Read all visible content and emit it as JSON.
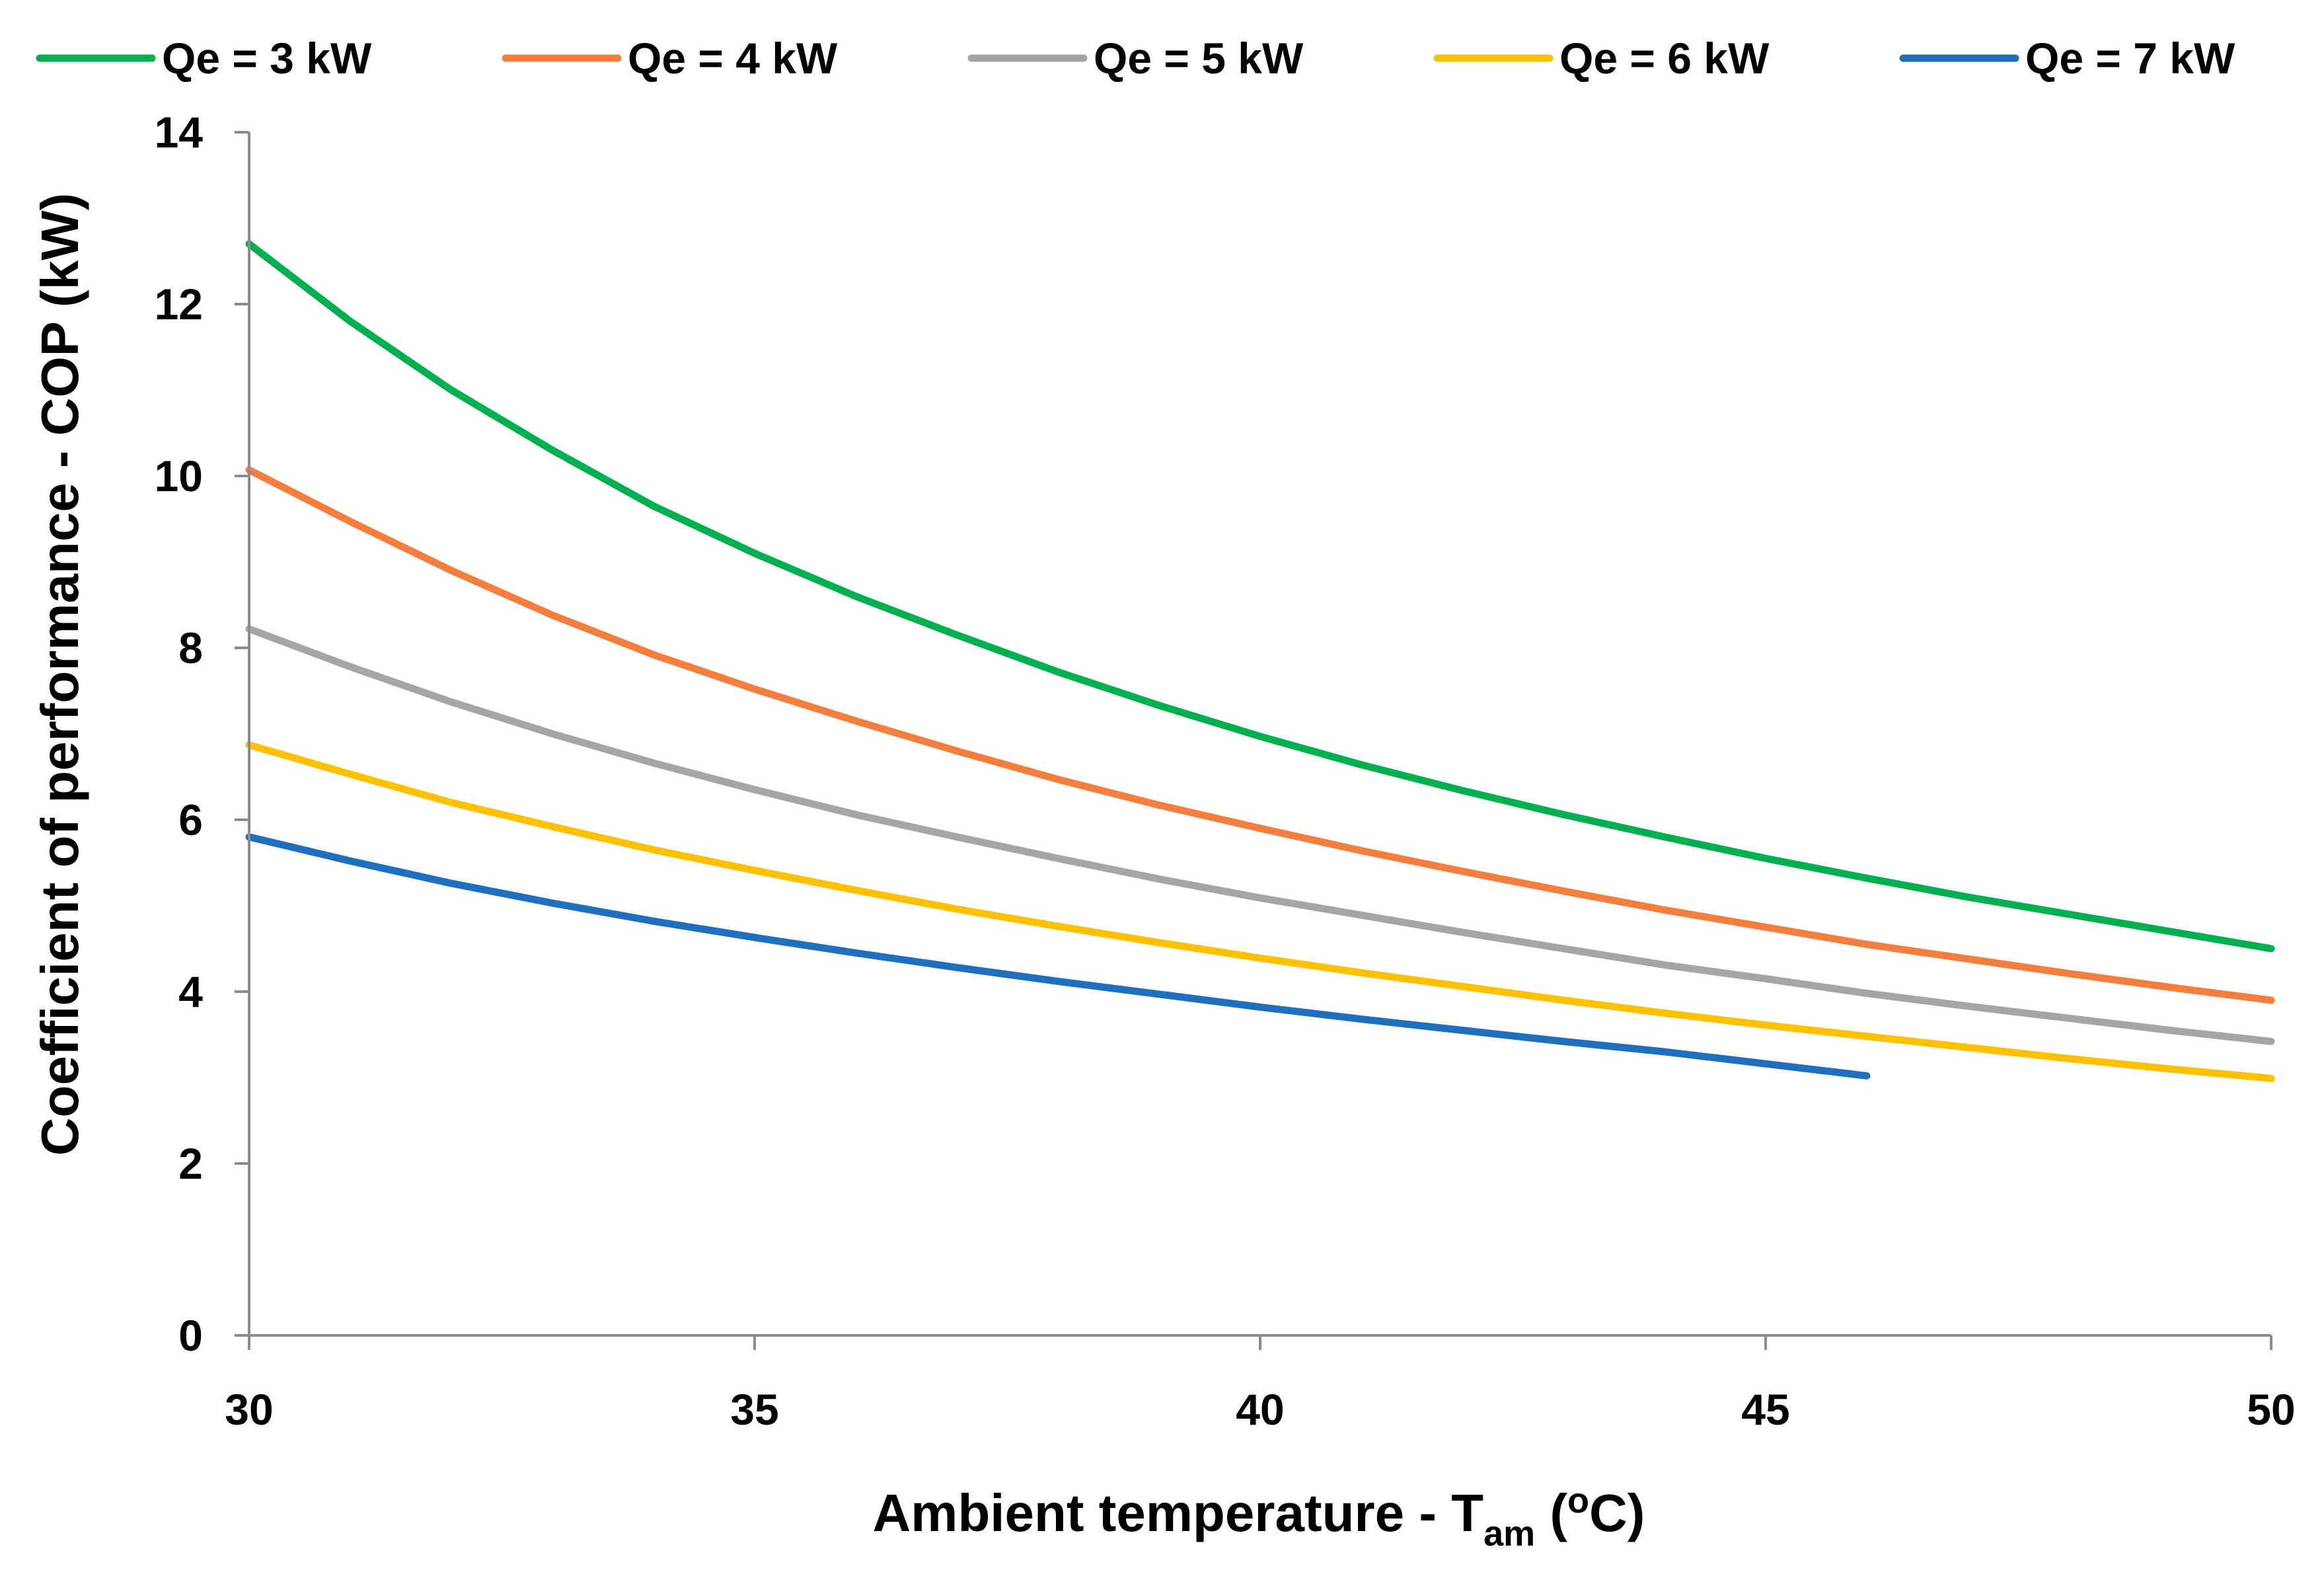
{
  "chart_data": {
    "type": "line",
    "xlabel": {
      "main": "Ambient temperature - T",
      "sub": "am",
      "tail": " (",
      "sup": "o",
      "end": "C)"
    },
    "ylabel": "Coefficient of performance - COP (kW)",
    "xlim": [
      30,
      50
    ],
    "ylim": [
      0,
      14
    ],
    "x_ticks": [
      "30",
      "35",
      "40",
      "45",
      "50"
    ],
    "y_ticks": [
      "0",
      "2",
      "4",
      "6",
      "8",
      "10",
      "12",
      "14"
    ],
    "grid": false,
    "legend_position": "top",
    "series": [
      {
        "name": "Qe = 3 kW",
        "color": "#00B050",
        "x": [
          30,
          31,
          32,
          33,
          34,
          35,
          36,
          37,
          38,
          39,
          40,
          41,
          42,
          43,
          44,
          45,
          46,
          47,
          48,
          49,
          50
        ],
        "y": [
          12.7,
          11.8,
          11.0,
          10.3,
          9.65,
          9.1,
          8.6,
          8.15,
          7.72,
          7.33,
          6.97,
          6.64,
          6.34,
          6.06,
          5.8,
          5.55,
          5.32,
          5.1,
          4.9,
          4.7,
          4.5
        ]
      },
      {
        "name": "Qe = 4 kW",
        "color": "#F47E3E",
        "x": [
          30,
          31,
          32,
          33,
          34,
          35,
          36,
          37,
          38,
          39,
          40,
          41,
          42,
          43,
          44,
          45,
          46,
          47,
          48,
          49,
          50
        ],
        "y": [
          10.07,
          9.47,
          8.9,
          8.38,
          7.92,
          7.52,
          7.15,
          6.8,
          6.47,
          6.17,
          5.9,
          5.64,
          5.4,
          5.17,
          4.95,
          4.75,
          4.55,
          4.38,
          4.21,
          4.05,
          3.9
        ]
      },
      {
        "name": "Qe = 5 kW",
        "color": "#A5A5A5",
        "x": [
          30,
          31,
          32,
          33,
          34,
          35,
          36,
          37,
          38,
          39,
          40,
          41,
          42,
          43,
          44,
          45,
          46,
          47,
          48,
          49,
          50
        ],
        "y": [
          8.22,
          7.78,
          7.37,
          7.0,
          6.66,
          6.35,
          6.06,
          5.8,
          5.55,
          5.31,
          5.09,
          4.89,
          4.69,
          4.5,
          4.31,
          4.15,
          3.98,
          3.83,
          3.69,
          3.55,
          3.42
        ]
      },
      {
        "name": "Qe = 6 kW",
        "color": "#FFC000",
        "x": [
          30,
          31,
          32,
          33,
          34,
          35,
          36,
          37,
          38,
          39,
          40,
          41,
          42,
          43,
          44,
          45,
          46,
          47,
          48,
          49,
          50
        ],
        "y": [
          6.87,
          6.53,
          6.2,
          5.92,
          5.65,
          5.41,
          5.18,
          4.96,
          4.76,
          4.57,
          4.39,
          4.22,
          4.06,
          3.9,
          3.75,
          3.61,
          3.48,
          3.35,
          3.22,
          3.1,
          2.99
        ]
      },
      {
        "name": "Qe = 7 kW",
        "color": "#1F6FBF",
        "x": [
          30,
          31,
          32,
          33,
          34,
          35,
          36,
          37,
          38,
          39,
          40,
          41,
          42,
          43,
          44,
          45,
          46
        ],
        "y": [
          5.8,
          5.52,
          5.26,
          5.03,
          4.82,
          4.63,
          4.45,
          4.28,
          4.12,
          3.97,
          3.82,
          3.68,
          3.55,
          3.42,
          3.3,
          3.16,
          3.02
        ]
      }
    ]
  }
}
